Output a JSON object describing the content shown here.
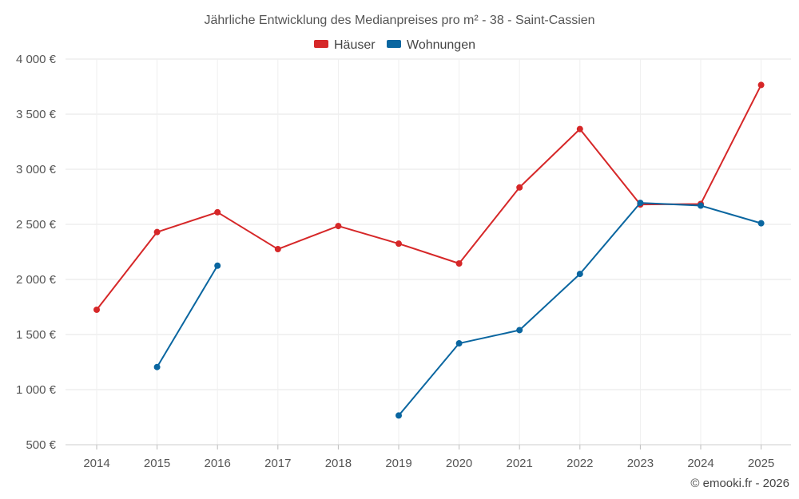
{
  "chart_data": {
    "type": "line",
    "title": "Jährliche Entwicklung des Medianpreises pro m² - 38 - Saint-Cassien",
    "categories": [
      "2014",
      "2015",
      "2016",
      "2017",
      "2018",
      "2019",
      "2020",
      "2021",
      "2022",
      "2023",
      "2024",
      "2025"
    ],
    "y_ticks": [
      500,
      1000,
      1500,
      2000,
      2500,
      3000,
      3500,
      4000
    ],
    "y_tick_labels": [
      "500 €",
      "1 000 €",
      "1 500 €",
      "2 000 €",
      "2 500 €",
      "3 000 €",
      "3 500 €",
      "4 000 €"
    ],
    "ylim": [
      500,
      4000
    ],
    "grid": true,
    "legend_position": "top-center",
    "series": [
      {
        "name": "Häuser",
        "color": "#d62728",
        "values": [
          1725,
          2430,
          2610,
          2275,
          2485,
          2325,
          2145,
          2835,
          3365,
          2680,
          2685,
          3765
        ]
      },
      {
        "name": "Wohnungen",
        "color": "#0a66a0",
        "values": [
          null,
          1205,
          2125,
          null,
          null,
          765,
          1420,
          1540,
          2050,
          2695,
          2670,
          2510
        ]
      }
    ],
    "credit": "© emooki.fr - 2026"
  }
}
